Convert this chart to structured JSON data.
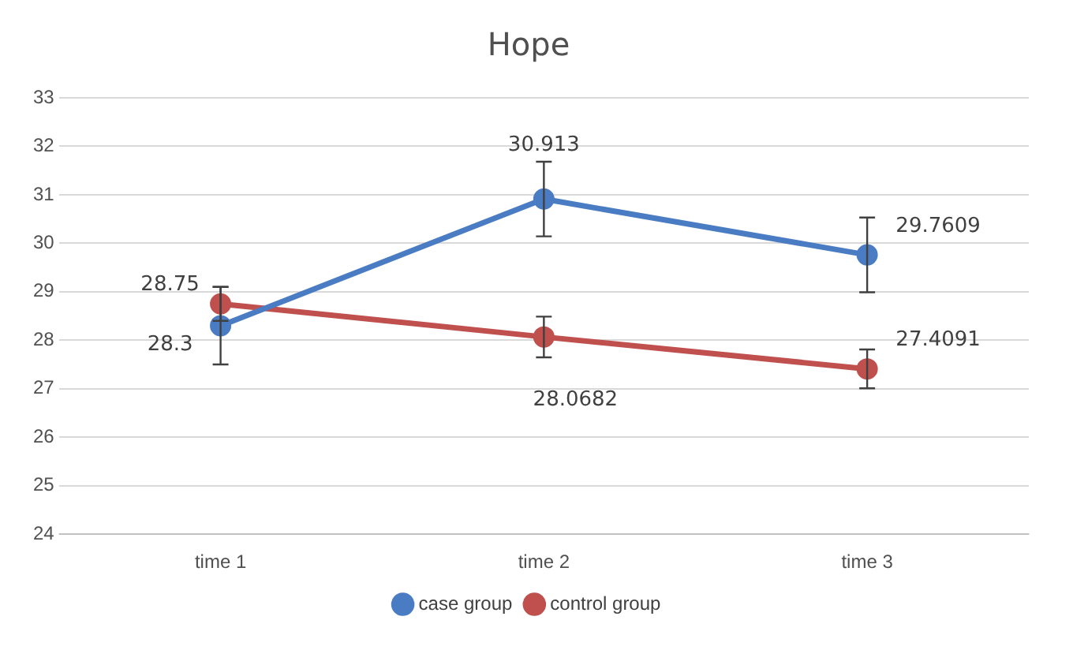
{
  "chart_data": {
    "type": "line",
    "title": "Hope",
    "categories": [
      "time 1",
      "time 2",
      "time 3"
    ],
    "series": [
      {
        "name": "case group",
        "color": "#4a7cc4",
        "values": [
          28.3,
          30.913,
          29.7609
        ],
        "errors": [
          0.8,
          0.77,
          0.77
        ]
      },
      {
        "name": "control group",
        "color": "#c0504d",
        "values": [
          28.75,
          28.0682,
          27.4091
        ],
        "errors": [
          0.35,
          0.42,
          0.4
        ]
      }
    ],
    "ylim": [
      24,
      33
    ],
    "yticks": [
      24,
      25,
      26,
      27,
      28,
      29,
      30,
      31,
      32,
      33
    ],
    "grid": "y",
    "legend": "bottom",
    "marker": "circle",
    "line_style": "solid",
    "data_labels": true
  }
}
